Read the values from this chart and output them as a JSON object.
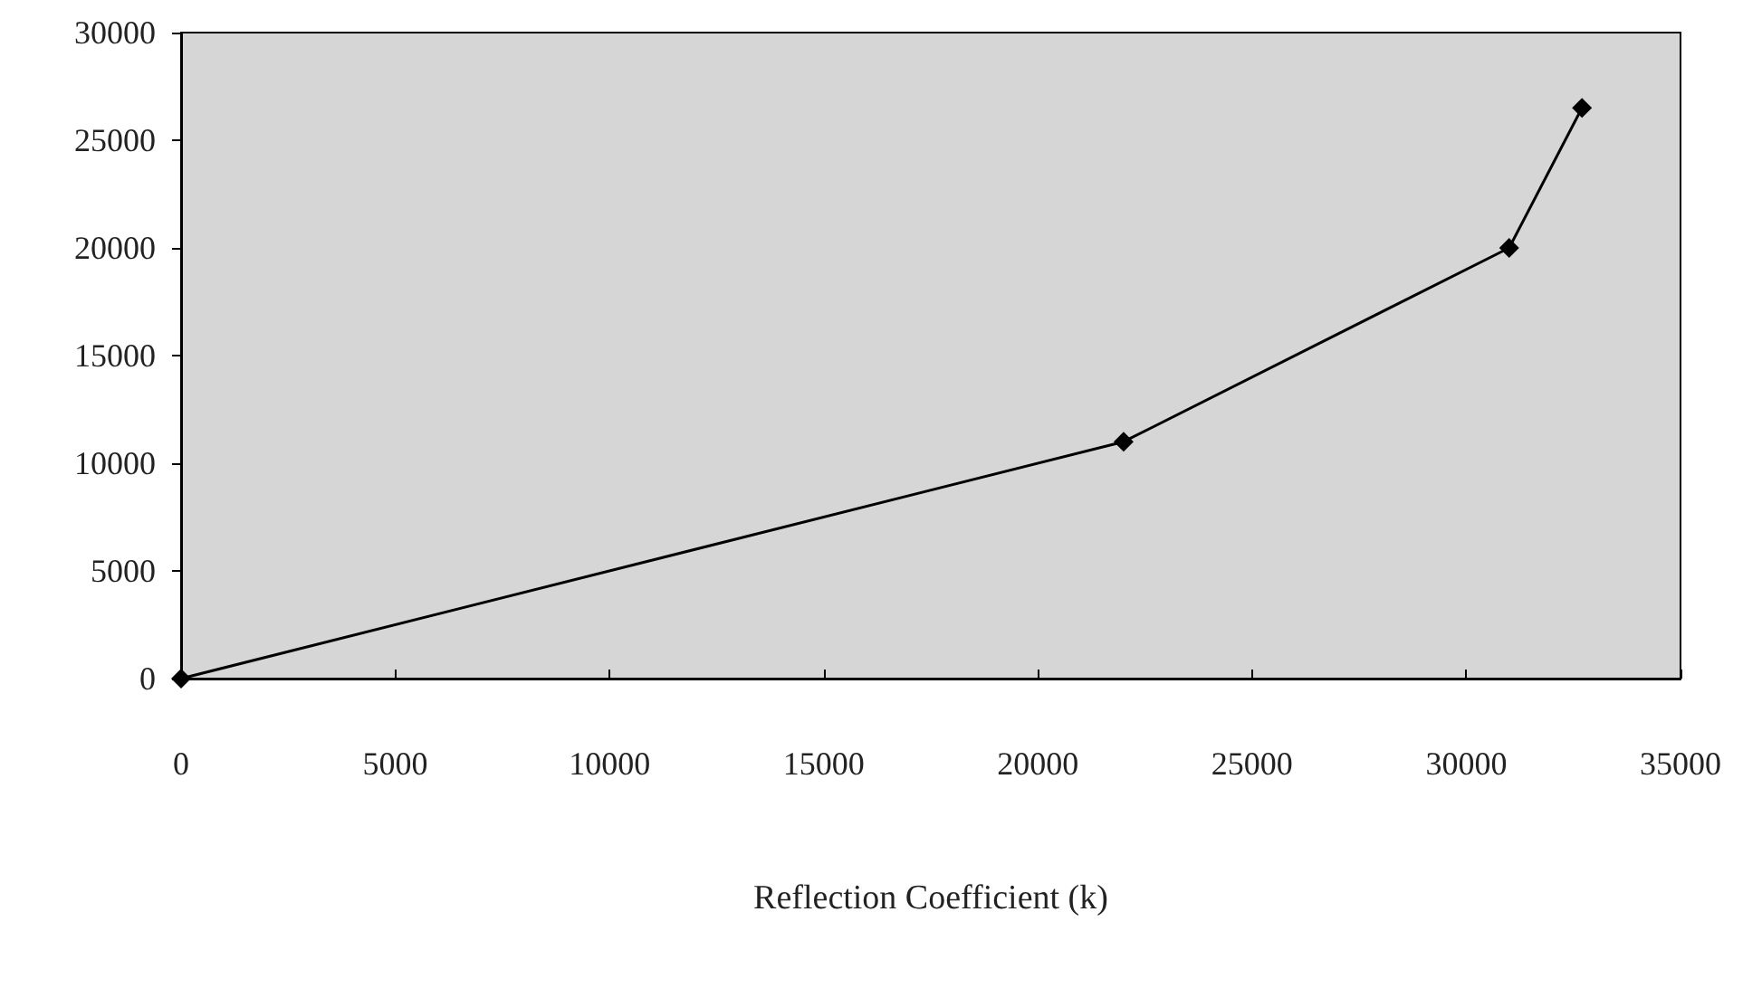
{
  "chart_data": {
    "type": "line",
    "xlabel": "Reflection Coefficient (k)",
    "x": [
      0,
      22000,
      31000,
      32700
    ],
    "series": [
      {
        "color": "#000000",
        "values": [
          0,
          11000,
          20000,
          26500
        ]
      }
    ],
    "xlim": [
      0,
      35000
    ],
    "xticks": [
      0,
      5000,
      10000,
      15000,
      20000,
      25000,
      30000,
      35000
    ],
    "ylim": [
      0,
      30000
    ],
    "yticks": [
      0,
      5000,
      10000,
      15000,
      20000,
      25000,
      30000
    ],
    "grid": false,
    "marker": "diamond",
    "line_style": "solid"
  }
}
